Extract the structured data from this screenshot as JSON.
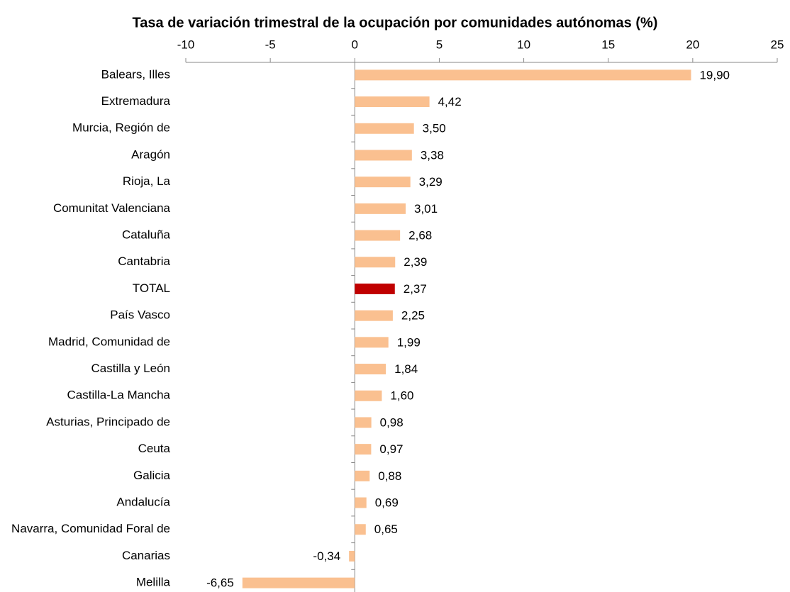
{
  "chart_data": {
    "type": "hbar",
    "title": "Tasa de variación trimestral de la ocupación por comunidades autónomas (%)",
    "categories": [
      "Balears, Illes",
      "Extremadura",
      "Murcia, Región de",
      "Aragón",
      "Rioja, La",
      "Comunitat Valenciana",
      "Cataluña",
      "Cantabria",
      "TOTAL",
      "País Vasco",
      "Madrid, Comunidad de",
      "Castilla y León",
      "Castilla-La Mancha",
      "Asturias, Principado de",
      "Ceuta",
      "Galicia",
      "Andalucía",
      "Navarra, Comunidad Foral de",
      "Canarias",
      "Melilla"
    ],
    "values": [
      19.9,
      4.42,
      3.5,
      3.38,
      3.29,
      3.01,
      2.68,
      2.39,
      2.37,
      2.25,
      1.99,
      1.84,
      1.6,
      0.98,
      0.97,
      0.88,
      0.69,
      0.65,
      -0.34,
      -6.65
    ],
    "value_labels": [
      "19,90",
      "4,42",
      "3,50",
      "3,38",
      "3,29",
      "3,01",
      "2,68",
      "2,39",
      "2,37",
      "2,25",
      "1,99",
      "1,84",
      "1,60",
      "0,98",
      "0,97",
      "0,88",
      "0,69",
      "0,65",
      "-0,34",
      "-6,65"
    ],
    "colors": [
      "#fac090",
      "#fac090",
      "#fac090",
      "#fac090",
      "#fac090",
      "#fac090",
      "#fac090",
      "#fac090",
      "#c00000",
      "#fac090",
      "#fac090",
      "#fac090",
      "#fac090",
      "#fac090",
      "#fac090",
      "#fac090",
      "#fac090",
      "#fac090",
      "#fac090",
      "#fac090"
    ],
    "xlim": [
      -10,
      25
    ],
    "xticks": [
      -10,
      -5,
      0,
      5,
      10,
      15,
      20,
      25
    ]
  }
}
